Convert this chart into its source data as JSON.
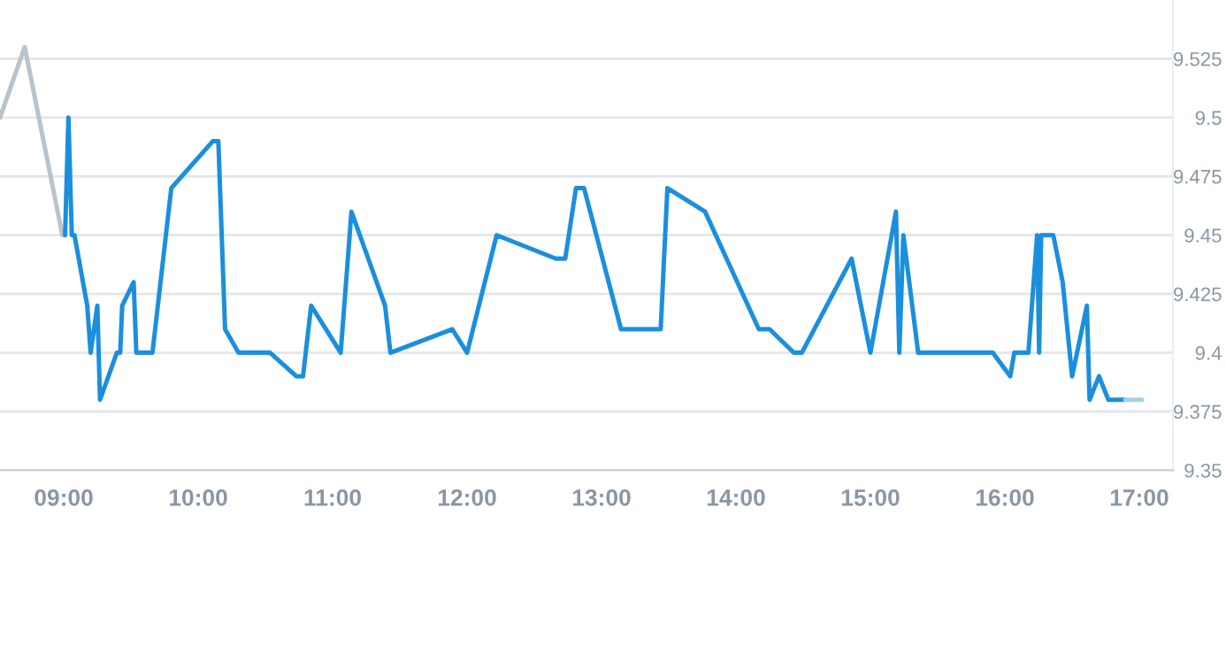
{
  "chart_data": {
    "type": "line",
    "grid": "y",
    "xlim": [
      8.526,
      17.25
    ],
    "ylim": [
      9.35,
      9.55
    ],
    "xticks": [
      {
        "value": 9,
        "label": "09:00"
      },
      {
        "value": 10,
        "label": "10:00"
      },
      {
        "value": 11,
        "label": "11:00"
      },
      {
        "value": 12,
        "label": "12:00"
      },
      {
        "value": 13,
        "label": "13:00"
      },
      {
        "value": 14,
        "label": "14:00"
      },
      {
        "value": 15,
        "label": "15:00"
      },
      {
        "value": 16,
        "label": "16:00"
      },
      {
        "value": 17,
        "label": "17:00"
      }
    ],
    "yticks": [
      9.35,
      9.375,
      9.4,
      9.425,
      9.45,
      9.475,
      9.5,
      9.525
    ],
    "series": [
      {
        "color": "#b8c4cc",
        "x": [
          8.526,
          8.71,
          8.99,
          9.01
        ],
        "values": [
          9.5,
          9.53,
          9.45,
          9.45
        ]
      },
      {
        "color": "#1a8fdd",
        "x": [
          9.01,
          9.035,
          9.06,
          9.08,
          9.175,
          9.2,
          9.25,
          9.27,
          9.395,
          9.42,
          9.435,
          9.52,
          9.54,
          9.66,
          9.8,
          10.11,
          10.15,
          10.2,
          10.3,
          10.535,
          10.73,
          10.78,
          10.84,
          11.06,
          11.14,
          11.39,
          11.43,
          11.89,
          12.0,
          12.22,
          12.66,
          12.73,
          12.81,
          12.87,
          13.145,
          13.44,
          13.49,
          13.77,
          14.17,
          14.25,
          14.43,
          14.49,
          14.86,
          15.0,
          15.19,
          15.215,
          15.245,
          15.355,
          15.91,
          16.04,
          16.07,
          16.175,
          16.24,
          16.255,
          16.27,
          16.36,
          16.43,
          16.5,
          16.61,
          16.63,
          16.7,
          16.77,
          16.895
        ],
        "values": [
          9.45,
          9.5,
          9.45,
          9.45,
          9.42,
          9.4,
          9.42,
          9.38,
          9.4,
          9.4,
          9.42,
          9.43,
          9.4,
          9.4,
          9.47,
          9.49,
          9.49,
          9.41,
          9.4,
          9.4,
          9.39,
          9.39,
          9.42,
          9.4,
          9.46,
          9.42,
          9.4,
          9.41,
          9.4,
          9.45,
          9.44,
          9.44,
          9.47,
          9.47,
          9.41,
          9.41,
          9.47,
          9.46,
          9.41,
          9.41,
          9.4,
          9.4,
          9.44,
          9.4,
          9.46,
          9.4,
          9.45,
          9.4,
          9.4,
          9.39,
          9.4,
          9.4,
          9.45,
          9.4,
          9.45,
          9.45,
          9.43,
          9.39,
          9.42,
          9.38,
          9.39,
          9.38,
          9.38
        ]
      },
      {
        "color": "#a9cfe8",
        "x": [
          16.895,
          17.02
        ],
        "values": [
          9.38,
          9.38
        ]
      }
    ]
  }
}
